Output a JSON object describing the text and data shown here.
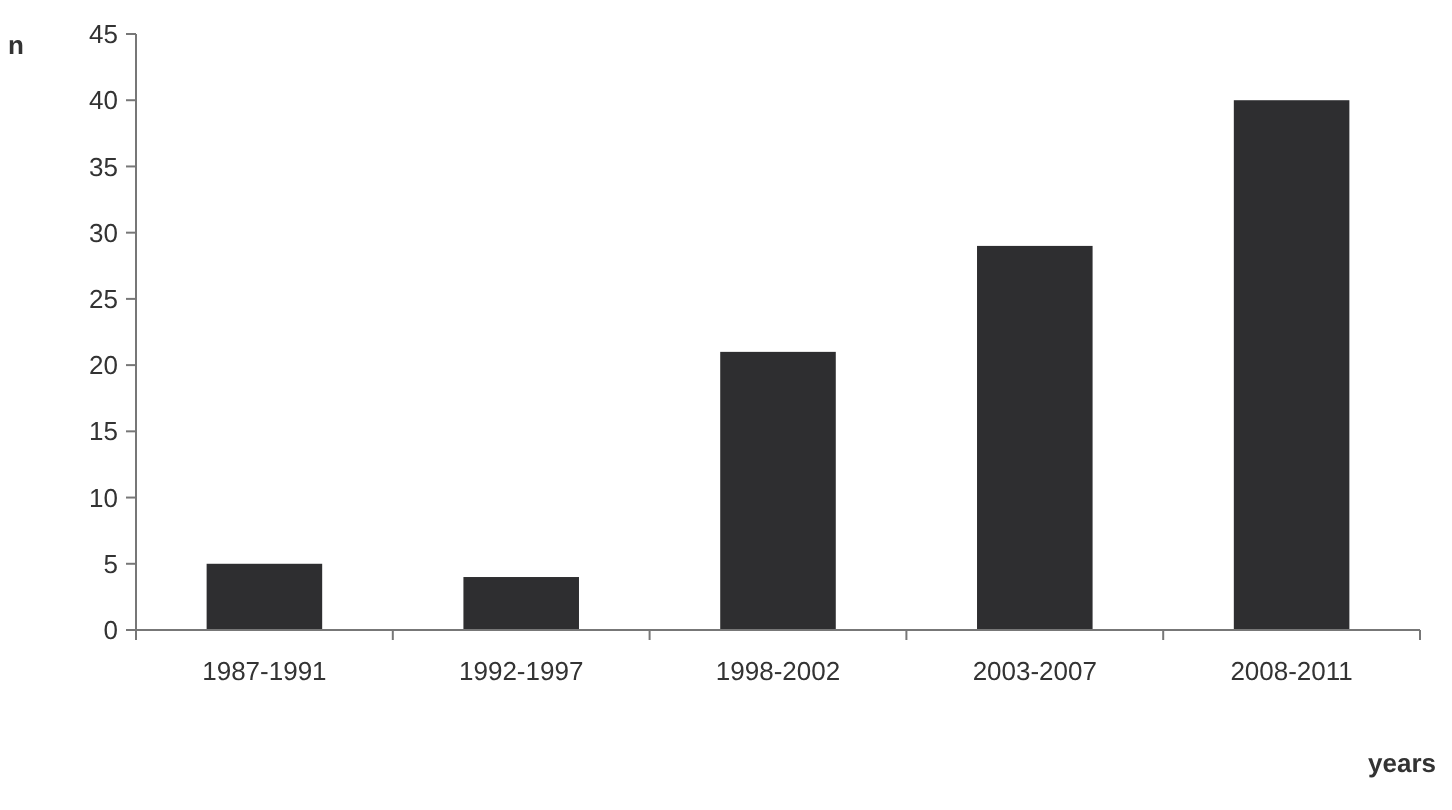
{
  "chart_data": {
    "type": "bar",
    "xlabel": "years",
    "ylabel": "n",
    "categories": [
      "1987-1991",
      "1992-1997",
      "1998-2002",
      "2003-2007",
      "2008-2011"
    ],
    "values": [
      5,
      4,
      21,
      29,
      40
    ],
    "color": "#2e2e30",
    "ylim": [
      0,
      45
    ],
    "yticks": [
      0,
      5,
      10,
      15,
      20,
      25,
      30,
      35,
      40,
      45
    ],
    "grid": false
  }
}
